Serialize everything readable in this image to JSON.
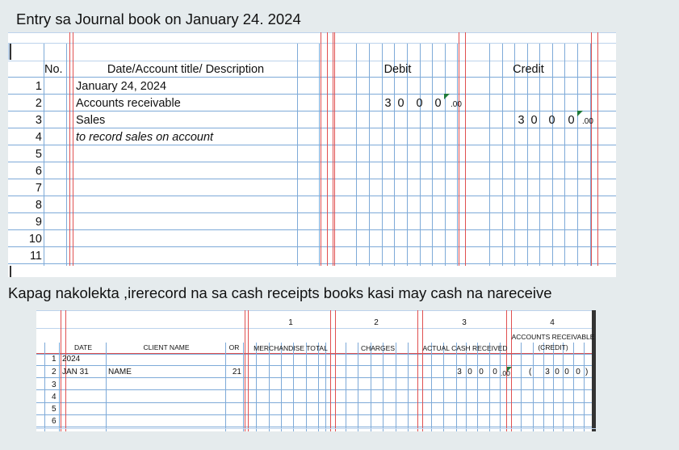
{
  "captions": {
    "journal": "Entry sa Journal book on January 24. 2024",
    "receipts": "Kapag nakolekta ,irerecord na sa cash receipts books kasi may cash na nareceive"
  },
  "journal": {
    "headers": {
      "no": "No.",
      "description": "Date/Account title/ Description",
      "debit": "Debit",
      "credit": "Credit"
    },
    "row_numbers": [
      "1",
      "2",
      "3",
      "4",
      "5",
      "6",
      "7",
      "8",
      "9",
      "10",
      "11"
    ],
    "descriptions": [
      "January 24, 2024",
      "Accounts receivable",
      "Sales",
      "to record sales on account"
    ],
    "debit_row2": {
      "digits": [
        "3",
        "0",
        "0",
        "0"
      ],
      "cents": ".00"
    },
    "credit_row3": {
      "digits": [
        "3",
        "0",
        "0",
        "0"
      ],
      "cents": ".00"
    }
  },
  "receipts": {
    "col_numbers": [
      "1",
      "2",
      "3",
      "4"
    ],
    "headers": {
      "date": "DATE",
      "client": "CLIENT NAME",
      "or": "OR",
      "merch": "MERCHANDISE TOTAL",
      "charges": "CHARGES",
      "actual": "ACTUAL CASH RECEIVED",
      "ar_line1": "ACCOUNTS RECEIVABLE",
      "ar_line2": "(CREDIT)"
    },
    "row_numbers": [
      "1",
      "2",
      "3",
      "4",
      "5",
      "6"
    ],
    "row1_date": "2024",
    "row2": {
      "date": "JAN 31",
      "client": "NAME",
      "or": "21"
    },
    "actual_digits": [
      "3",
      "0",
      "0",
      "0"
    ],
    "actual_cents": ".00",
    "ar_open": "(",
    "ar_digits": [
      "3",
      "0",
      "0",
      "0"
    ],
    "ar_close": ")"
  }
}
